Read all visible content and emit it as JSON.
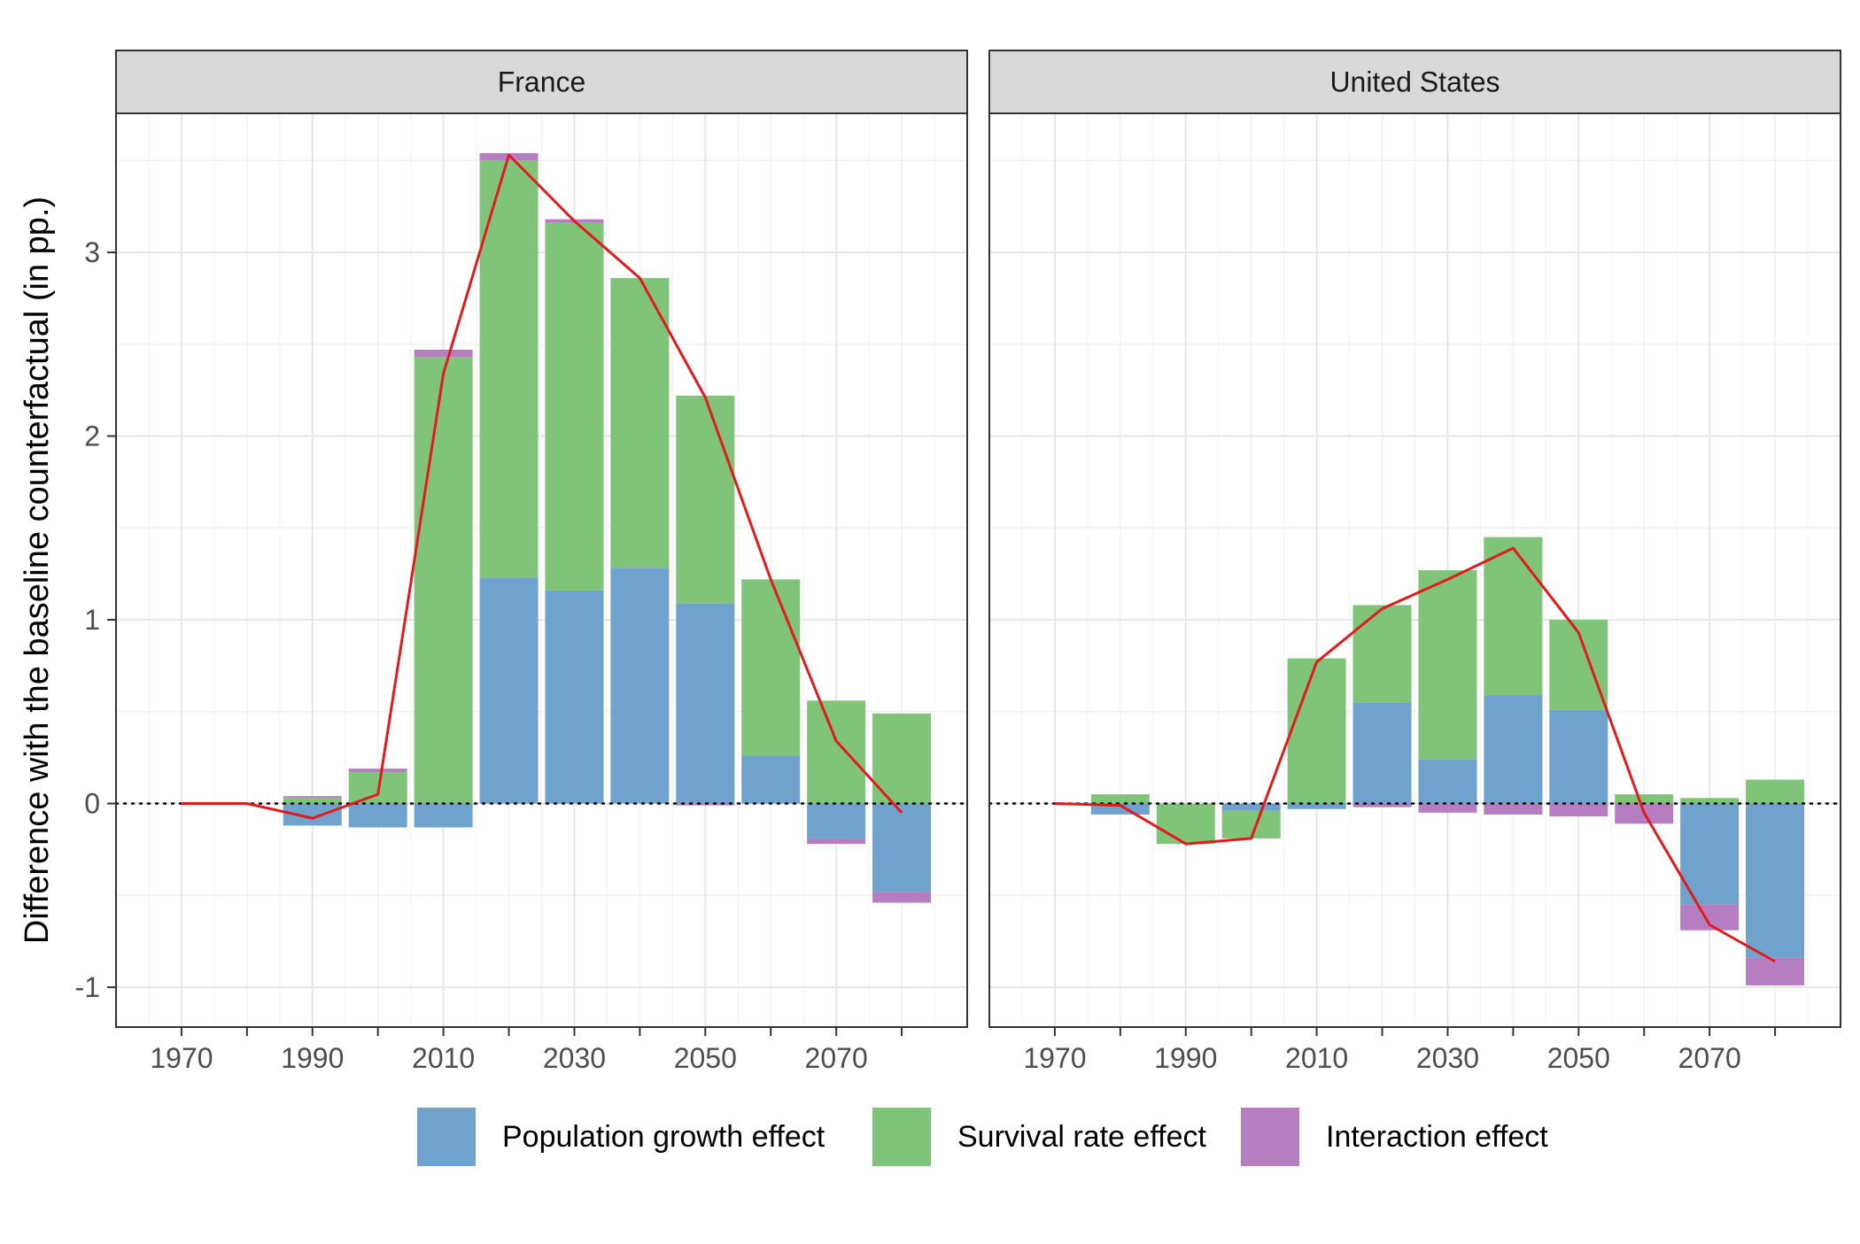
{
  "chart_data": {
    "type": "bar",
    "ylabel": "Difference with the baseline counterfactual (in pp.)",
    "xlabel": "",
    "x_ticks": [
      1970,
      1990,
      2010,
      2030,
      2050,
      2070
    ],
    "x_minor": [
      1980,
      2000,
      2020,
      2040,
      2060,
      2080
    ],
    "xlim": [
      1960,
      2090
    ],
    "ylim": [
      -1.2,
      3.75
    ],
    "y_ticks": [
      -1,
      0,
      1,
      2,
      3
    ],
    "y_tick_labels": [
      "-1",
      "0",
      "1",
      "2",
      "3"
    ],
    "grid": true,
    "legend_position": "bottom",
    "colors": {
      "population": "#6fa3cd",
      "survival": "#80c47a",
      "interaction": "#b67ec0",
      "line": "#e31a1c",
      "baseline": "#000000"
    },
    "legend": [
      {
        "key": "population",
        "label": "Population growth effect"
      },
      {
        "key": "survival",
        "label": "Survival rate effect"
      },
      {
        "key": "interaction",
        "label": "Interaction effect"
      }
    ],
    "panels": [
      {
        "title": "France",
        "x": [
          1970,
          1980,
          1990,
          2000,
          2010,
          2020,
          2030,
          2040,
          2050,
          2060,
          2070,
          2080
        ],
        "series": [
          {
            "name": "Population growth effect",
            "key": "population",
            "values": [
              0,
              0,
              -0.12,
              -0.13,
              -0.13,
              1.23,
              1.16,
              1.28,
              1.09,
              0.26,
              -0.19,
              -0.48
            ]
          },
          {
            "name": "Survival rate effect",
            "key": "survival",
            "values": [
              0,
              0,
              0.03,
              0.17,
              2.43,
              2.27,
              2.0,
              1.58,
              1.13,
              0.96,
              0.56,
              0.49
            ]
          },
          {
            "name": "Interaction effect",
            "key": "interaction",
            "values": [
              0,
              0,
              0.01,
              0.02,
              0.04,
              0.04,
              0.02,
              0,
              -0.01,
              0,
              -0.03,
              -0.06
            ]
          }
        ],
        "total": [
          0,
          0,
          -0.08,
          0.05,
          2.34,
          3.53,
          3.17,
          2.86,
          2.21,
          1.22,
          0.34,
          -0.05
        ]
      },
      {
        "title": "United States",
        "x": [
          1970,
          1980,
          1990,
          2000,
          2010,
          2020,
          2030,
          2040,
          2050,
          2060,
          2070,
          2080
        ],
        "series": [
          {
            "name": "Population growth effect",
            "key": "population",
            "values": [
              0,
              -0.06,
              0,
              -0.04,
              -0.03,
              0.55,
              0.24,
              0.59,
              0.51,
              0,
              -0.55,
              -0.84
            ]
          },
          {
            "name": "Survival rate effect",
            "key": "survival",
            "values": [
              0,
              0.05,
              -0.22,
              -0.15,
              0.79,
              0.53,
              1.03,
              0.86,
              0.49,
              0.05,
              0.03,
              0.13
            ]
          },
          {
            "name": "Interaction effect",
            "key": "interaction",
            "values": [
              0,
              0,
              0,
              0,
              0,
              -0.02,
              -0.05,
              -0.06,
              -0.07,
              -0.11,
              -0.14,
              -0.15
            ]
          }
        ],
        "total": [
          0,
          -0.01,
          -0.22,
          -0.19,
          0.77,
          1.06,
          1.22,
          1.39,
          0.93,
          -0.05,
          -0.66,
          -0.86
        ]
      }
    ]
  }
}
